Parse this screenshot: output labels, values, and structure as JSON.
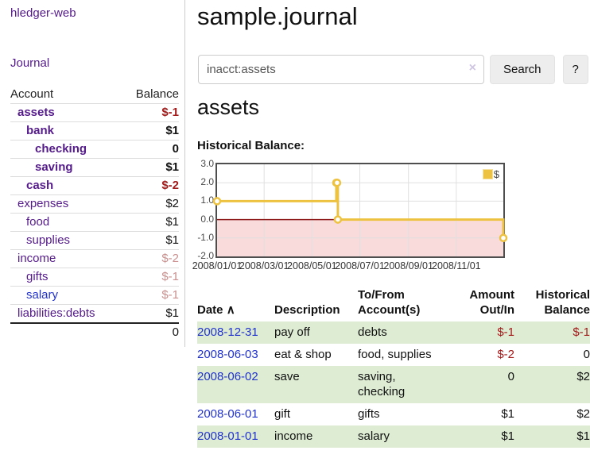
{
  "app": {
    "brand": "hledger-web"
  },
  "sidebar": {
    "nav_journal": "Journal",
    "accounts_table": {
      "header_account": "Account",
      "header_balance": "Balance",
      "rows": [
        {
          "name": "assets",
          "level": 1,
          "bold": true,
          "balance": "$-1",
          "balance_style": "neg-strong"
        },
        {
          "name": "bank",
          "level": 2,
          "bold": true,
          "balance": "$1",
          "balance_style": "pos"
        },
        {
          "name": "checking",
          "level": 3,
          "bold": true,
          "balance": "0",
          "balance_style": "pos"
        },
        {
          "name": "saving",
          "level": 3,
          "bold": true,
          "balance": "$1",
          "balance_style": "pos"
        },
        {
          "name": "cash",
          "level": 2,
          "bold": true,
          "balance": "$-2",
          "balance_style": "neg-strong"
        },
        {
          "name": "expenses",
          "level": 1,
          "bold": false,
          "balance": "$2",
          "balance_style": "pos"
        },
        {
          "name": "food",
          "level": 2,
          "bold": false,
          "balance": "$1",
          "balance_style": "pos"
        },
        {
          "name": "supplies",
          "level": 2,
          "bold": false,
          "balance": "$1",
          "balance_style": "pos"
        },
        {
          "name": "income",
          "level": 1,
          "bold": false,
          "balance": "$-2",
          "balance_style": "neg-soft"
        },
        {
          "name": "gifts",
          "level": 2,
          "bold": false,
          "balance": "$-1",
          "balance_style": "neg-soft"
        },
        {
          "name": "salary",
          "level": 2,
          "bold": false,
          "balance": "$-1",
          "balance_style": "neg-soft",
          "link_color": "blue"
        },
        {
          "name": "liabilities:debts",
          "level": 1,
          "bold": false,
          "balance": "$1",
          "balance_style": "pos"
        }
      ],
      "total": "0"
    }
  },
  "main": {
    "title": "sample.journal",
    "search": {
      "value": "inacct:assets",
      "clear_icon": "×",
      "button_label": "Search",
      "help_label": "?"
    },
    "account_heading": "assets",
    "chart_label": "Historical Balance:"
  },
  "chart_data": {
    "type": "line",
    "step": true,
    "title": "Historical Balance",
    "series": [
      {
        "name": "$",
        "color": "#edc240",
        "points": [
          [
            "2008-01-01",
            1
          ],
          [
            "2008-06-01",
            2
          ],
          [
            "2008-06-02",
            2
          ],
          [
            "2008-06-03",
            0
          ],
          [
            "2008-12-31",
            -1
          ]
        ]
      }
    ],
    "ylim": [
      -2.0,
      3.0
    ],
    "y_ticks": [
      "3.0",
      "2.0",
      "1.0",
      "0.0",
      "-1.0",
      "-2.0"
    ],
    "x_ticks": [
      "2008/01/01",
      "2008/03/01",
      "2008/05/01",
      "2008/07/01",
      "2008/09/01",
      "2008/11/01"
    ],
    "x_range": [
      "2008-01-01",
      "2008-12-31"
    ],
    "grid": true,
    "negative_fill": "#f9dbdb",
    "zero_line_color": "#8e1a1a",
    "legend_position": "top-right",
    "legend": [
      {
        "swatch": "#edc240",
        "label": "$"
      }
    ]
  },
  "register": {
    "headers": {
      "date": "Date",
      "sort_icon": "∧",
      "description": "Description",
      "accounts": "To/From Account(s)",
      "amount": "Amount Out/In",
      "balance": "Historical Balance"
    },
    "rows": [
      {
        "date": "2008-12-31",
        "description": "pay off",
        "accounts": "debts",
        "amount": "$-1",
        "amount_neg": true,
        "balance": "$-1",
        "balance_neg": true
      },
      {
        "date": "2008-06-03",
        "description": "eat & shop",
        "accounts": "food, supplies",
        "amount": "$-2",
        "amount_neg": true,
        "balance": "0",
        "balance_neg": false
      },
      {
        "date": "2008-06-02",
        "description": "save",
        "accounts": "saving, checking",
        "amount": "0",
        "amount_neg": false,
        "balance": "$2",
        "balance_neg": false
      },
      {
        "date": "2008-06-01",
        "description": "gift",
        "accounts": "gifts",
        "amount": "$1",
        "amount_neg": false,
        "balance": "$2",
        "balance_neg": false
      },
      {
        "date": "2008-01-01",
        "description": "income",
        "accounts": "salary",
        "amount": "$1",
        "amount_neg": false,
        "balance": "$1",
        "balance_neg": false
      }
    ]
  }
}
